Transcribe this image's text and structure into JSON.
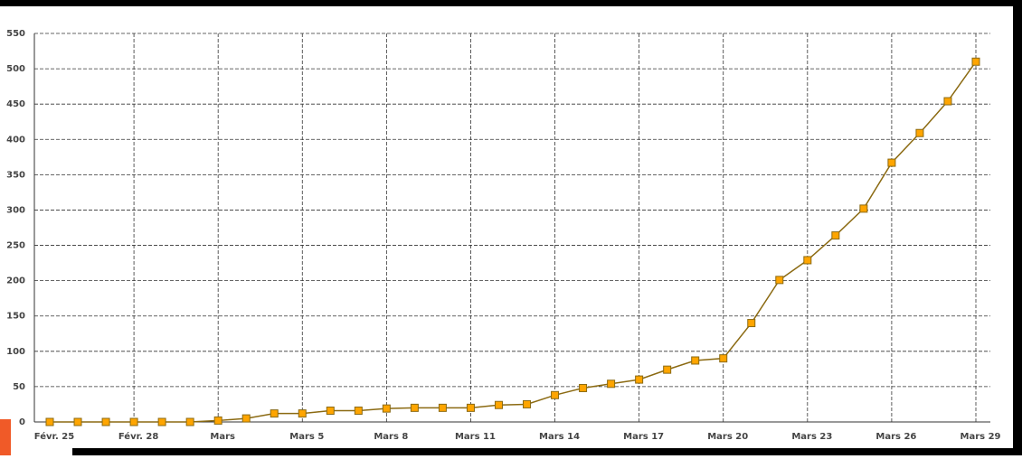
{
  "chart_data": {
    "type": "line",
    "categories": [
      "Févr. 25",
      null,
      null,
      "Févr. 28",
      null,
      null,
      "Mars",
      null,
      null,
      "Mars 5",
      null,
      null,
      "Mars 8",
      null,
      null,
      "Mars 11",
      null,
      null,
      "Mars 14",
      null,
      null,
      "Mars 17",
      null,
      null,
      "Mars 20",
      null,
      null,
      "Mars 23",
      null,
      null,
      "Mars 26",
      null,
      null,
      "Mars 29"
    ],
    "series": [
      {
        "color": "#8b6a12",
        "marker_color": "#ffa500",
        "values": [
          0,
          0,
          0,
          0,
          0,
          0,
          2,
          5,
          12,
          12,
          16,
          16,
          19,
          20,
          20,
          20,
          24,
          25,
          38,
          48,
          54,
          60,
          74,
          87,
          90,
          140,
          201,
          229,
          264,
          302,
          367,
          409,
          454,
          510
        ]
      }
    ],
    "ylim": [
      0,
      550
    ],
    "yticks": [
      0,
      50,
      100,
      150,
      200,
      250,
      300,
      350,
      400,
      450,
      500,
      550
    ],
    "grid": true
  }
}
